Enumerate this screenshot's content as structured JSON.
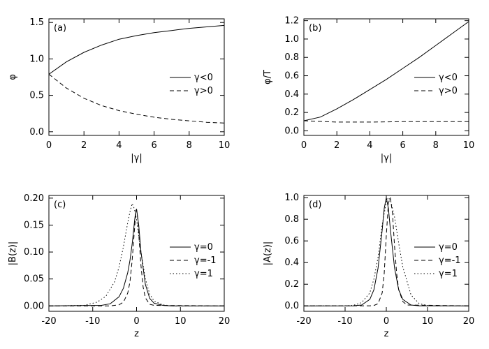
{
  "chart_data": [
    {
      "type": "line",
      "panel_label": "(a)",
      "xlabel": "|γ|",
      "ylabel": "φ",
      "xlim": [
        0,
        10
      ],
      "ylim": [
        -0.05,
        1.55
      ],
      "x_ticks": [
        0,
        2,
        4,
        6,
        8,
        10
      ],
      "y_ticks": [
        0.0,
        0.5,
        1.0,
        1.5
      ],
      "y_tick_labels": [
        "0.0",
        "0.5",
        "1.0",
        "1.5"
      ],
      "legend_position": "right-middle",
      "series": [
        {
          "name": "γ<0",
          "dash": "solid",
          "x": [
            0,
            1,
            2,
            3,
            4,
            5,
            6,
            7,
            8,
            9,
            10
          ],
          "y": [
            0.79,
            0.96,
            1.09,
            1.19,
            1.27,
            1.32,
            1.36,
            1.39,
            1.42,
            1.44,
            1.46
          ]
        },
        {
          "name": "γ>0",
          "dash": "dashed",
          "x": [
            0,
            1,
            2,
            3,
            4,
            5,
            6,
            7,
            8,
            9,
            10
          ],
          "y": [
            0.79,
            0.6,
            0.46,
            0.36,
            0.29,
            0.24,
            0.2,
            0.17,
            0.15,
            0.13,
            0.12
          ]
        }
      ]
    },
    {
      "type": "line",
      "panel_label": "(b)",
      "xlabel": "|γ|",
      "ylabel": "φ/T",
      "xlim": [
        0,
        10
      ],
      "ylim": [
        -0.05,
        1.22
      ],
      "x_ticks": [
        0,
        2,
        4,
        6,
        8,
        10
      ],
      "y_ticks": [
        0.0,
        0.2,
        0.4,
        0.6,
        0.8,
        1.0,
        1.2
      ],
      "y_tick_labels": [
        "0.0",
        "0.2",
        "0.4",
        "0.6",
        "0.8",
        "1.0",
        "1.2"
      ],
      "legend_position": "right-middle",
      "series": [
        {
          "name": "γ<0",
          "dash": "solid",
          "x": [
            0,
            1,
            2,
            3,
            4,
            5,
            6,
            7,
            8,
            9,
            10
          ],
          "y": [
            0.11,
            0.15,
            0.24,
            0.34,
            0.45,
            0.56,
            0.68,
            0.8,
            0.93,
            1.06,
            1.19
          ]
        },
        {
          "name": "γ>0",
          "dash": "dashed",
          "x": [
            0,
            2,
            4,
            6,
            8,
            10
          ],
          "y": [
            0.11,
            0.095,
            0.095,
            0.1,
            0.1,
            0.1
          ]
        }
      ]
    },
    {
      "type": "line",
      "panel_label": "(c)",
      "xlabel": "z",
      "ylabel": "|B(z)|",
      "xlim": [
        -20,
        20
      ],
      "ylim": [
        -0.01,
        0.205
      ],
      "x_ticks": [
        -20,
        -10,
        0,
        10,
        20
      ],
      "y_ticks": [
        0.0,
        0.05,
        0.1,
        0.15,
        0.2
      ],
      "y_tick_labels": [
        "0.00",
        "0.05",
        "0.10",
        "0.15",
        "0.20"
      ],
      "legend_position": "right-middle",
      "series": [
        {
          "name": "γ=0",
          "dash": "solid",
          "x": [
            -20,
            -8,
            -6,
            -4,
            -3,
            -2,
            -1.5,
            -1,
            -0.5,
            -0.2,
            0,
            0.5,
            1,
            2,
            3,
            4,
            6,
            8,
            20
          ],
          "y": [
            0,
            0.001,
            0.004,
            0.017,
            0.033,
            0.062,
            0.085,
            0.115,
            0.155,
            0.175,
            0.18,
            0.15,
            0.1,
            0.04,
            0.014,
            0.005,
            0.001,
            0,
            0
          ]
        },
        {
          "name": "γ=-1",
          "dash": "dashed",
          "x": [
            -20,
            -6,
            -4,
            -3,
            -2,
            -1.5,
            -1,
            -0.5,
            -0.2,
            0,
            0.3,
            0.6,
            1,
            1.5,
            2,
            3,
            4,
            20
          ],
          "y": [
            0,
            0,
            0.002,
            0.007,
            0.024,
            0.045,
            0.085,
            0.14,
            0.17,
            0.178,
            0.16,
            0.12,
            0.075,
            0.035,
            0.015,
            0.003,
            0.001,
            0
          ]
        },
        {
          "name": "γ=1",
          "dash": "dotted",
          "x": [
            -20,
            -12,
            -9,
            -7,
            -5,
            -4,
            -3,
            -2,
            -1.5,
            -1,
            -0.5,
            0,
            1,
            2,
            3,
            4,
            6,
            8,
            20
          ],
          "y": [
            0,
            0.001,
            0.007,
            0.018,
            0.045,
            0.072,
            0.11,
            0.155,
            0.175,
            0.19,
            0.18,
            0.16,
            0.1,
            0.05,
            0.022,
            0.009,
            0.002,
            0,
            0
          ]
        }
      ]
    },
    {
      "type": "line",
      "panel_label": "(d)",
      "xlabel": "z",
      "ylabel": "|A(z)|",
      "xlim": [
        -20,
        20
      ],
      "ylim": [
        -0.05,
        1.02
      ],
      "x_ticks": [
        -20,
        -10,
        0,
        10,
        20
      ],
      "y_ticks": [
        0.0,
        0.2,
        0.4,
        0.6,
        0.8,
        1.0
      ],
      "y_tick_labels": [
        "0.0",
        "0.2",
        "0.4",
        "0.6",
        "0.8",
        "1.0"
      ],
      "legend_position": "right-middle",
      "series": [
        {
          "name": "γ=0",
          "dash": "solid",
          "x": [
            -20,
            -8,
            -6,
            -4,
            -3,
            -2,
            -1,
            -0.5,
            0,
            0.5,
            1,
            2,
            3,
            4,
            6,
            8,
            20
          ],
          "y": [
            0,
            0.001,
            0.008,
            0.06,
            0.15,
            0.35,
            0.7,
            0.9,
            1.0,
            0.9,
            0.7,
            0.35,
            0.15,
            0.06,
            0.008,
            0.001,
            0
          ]
        },
        {
          "name": "γ=-1",
          "dash": "dashed",
          "x": [
            -20,
            -4,
            -3,
            -2,
            -1,
            -0.5,
            0,
            0.5,
            1,
            1.5,
            2,
            2.5,
            3,
            4,
            5,
            20
          ],
          "y": [
            0,
            0.001,
            0.004,
            0.02,
            0.12,
            0.3,
            0.65,
            0.95,
            1.0,
            0.85,
            0.55,
            0.3,
            0.15,
            0.04,
            0.008,
            0
          ]
        },
        {
          "name": "γ=1",
          "dash": "dotted",
          "x": [
            -20,
            -10,
            -8,
            -6,
            -4,
            -3,
            -2,
            -1,
            0,
            0.5,
            1,
            2,
            3,
            4,
            6,
            8,
            10,
            12,
            20
          ],
          "y": [
            0,
            0.001,
            0.005,
            0.03,
            0.12,
            0.25,
            0.45,
            0.75,
            0.96,
            1.0,
            0.98,
            0.82,
            0.58,
            0.36,
            0.1,
            0.02,
            0.004,
            0.001,
            0
          ]
        }
      ]
    }
  ]
}
